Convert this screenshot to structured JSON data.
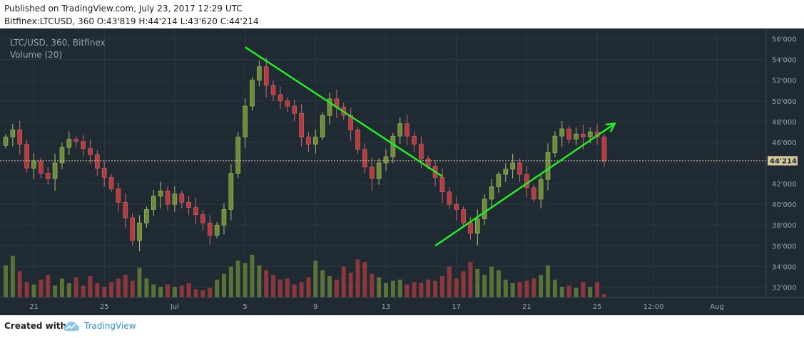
{
  "header": {
    "published": "Published on TradingView.com, July 23, 2017 12:29 UTC",
    "symbol_line": "Bitfinex:LTCUSD, 360  O:43'819 H:44'214 L:43'620 C:44'214"
  },
  "footer": {
    "created_with": "Created with",
    "brand": "TradingView",
    "logo_icon": "tradingview-cloud-icon"
  },
  "chart_data": {
    "type": "candlestick",
    "title": "LTC/USD, 360, Bitfinex",
    "subtitle": "Volume (20)",
    "background": "#1f2a33",
    "colors": {
      "up": "#6f8a3a",
      "down": "#b23c3f",
      "trend": "#22ee22",
      "price_label": "#d9c89a",
      "text": "#9aa3ab"
    },
    "ylim": [
      31000,
      57000
    ],
    "y_ticks": [
      32000,
      34000,
      36000,
      38000,
      40000,
      42000,
      44000,
      46000,
      48000,
      50000,
      52000,
      54000,
      56000
    ],
    "y_tick_labels": [
      "32'000",
      "34'000",
      "36'000",
      "38'000",
      "40'000",
      "42'000",
      "44'000",
      "46'000",
      "48'000",
      "50'000",
      "52'000",
      "54'000",
      "56'000"
    ],
    "xlim": [
      0,
      108
    ],
    "x_ticks": [
      {
        "x": 4,
        "label": "21"
      },
      {
        "x": 14,
        "label": "25"
      },
      {
        "x": 24,
        "label": "Jul"
      },
      {
        "x": 34,
        "label": "5"
      },
      {
        "x": 44,
        "label": "9"
      },
      {
        "x": 54,
        "label": "13"
      },
      {
        "x": 64,
        "label": "17"
      },
      {
        "x": 74,
        "label": "21"
      },
      {
        "x": 84,
        "label": "25"
      },
      {
        "x": 92,
        "label": "12:00"
      },
      {
        "x": 101,
        "label": "Aug"
      }
    ],
    "last_price": {
      "value": 44214,
      "label": "44'214"
    },
    "close": [
      46500,
      47200,
      45800,
      43500,
      44200,
      43000,
      42500,
      44000,
      45500,
      46300,
      46100,
      45400,
      44800,
      43500,
      42600,
      41500,
      40200,
      38700,
      36500,
      38200,
      39500,
      40800,
      41300,
      40000,
      41000,
      40200,
      39700,
      39000,
      38200,
      37000,
      38000,
      39500,
      43000,
      46500,
      49500,
      52000,
      53300,
      51500,
      50600,
      50000,
      49500,
      48800,
      46500,
      45800,
      46500,
      48600,
      50200,
      49400,
      48600,
      47200,
      45300,
      43600,
      42500,
      44000,
      44600,
      46600,
      47800,
      46600,
      45800,
      44400,
      43700,
      42600,
      41200,
      40000,
      39500,
      38200,
      37200,
      38600,
      40500,
      41700,
      42900,
      43400,
      44000,
      42900,
      41600,
      40500,
      42400,
      45000,
      46600,
      47300,
      46300,
      46800,
      46500,
      47000,
      46500,
      44200
    ],
    "volume": [
      2700,
      3500,
      2200,
      1300,
      1100,
      1500,
      1900,
      1000,
      1600,
      1200,
      1700,
      1000,
      1800,
      1200,
      900,
      1300,
      1600,
      1900,
      1400,
      2500,
      1600,
      1100,
      900,
      1100,
      900,
      1000,
      1200,
      700,
      600,
      800,
      1500,
      2000,
      2600,
      3100,
      2900,
      3600,
      2700,
      2300,
      1900,
      1500,
      1600,
      1100,
      1300,
      1700,
      3100,
      2300,
      1800,
      1500,
      2600,
      2100,
      3200,
      3000,
      2000,
      1700,
      1200,
      1400,
      1500,
      1100,
      1300,
      1200,
      1500,
      1400,
      1800,
      2600,
      1600,
      2200,
      3000,
      2400,
      1900,
      2600,
      2300,
      1500,
      1200,
      1300,
      1400,
      1600,
      1900,
      2700,
      1500,
      900,
      1000,
      800,
      1300,
      900,
      1300,
      300
    ],
    "trend_lines": [
      {
        "from": [
          34,
          55200
        ],
        "to": [
          62,
          42700
        ]
      },
      {
        "from": [
          61,
          36000
        ],
        "to": [
          86.5,
          47800
        ],
        "arrow": true
      }
    ]
  }
}
